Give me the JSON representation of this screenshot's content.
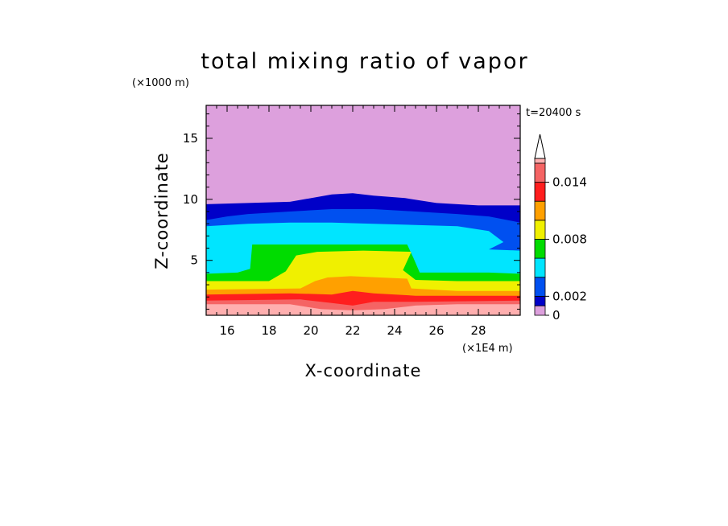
{
  "chart_data": {
    "type": "heatmap",
    "title": "total mixing ratio of vapor",
    "xlabel": "X-coordinate",
    "ylabel": "Z-coordinate",
    "x_unit": "(×1E4 m)",
    "y_unit": "(×1000 m)",
    "time_label": "t=20400 s",
    "xlim": [
      15,
      30
    ],
    "ylim": [
      0.5,
      17.7
    ],
    "x_ticks": [
      16,
      18,
      20,
      22,
      24,
      26,
      28
    ],
    "y_ticks": [
      5,
      10,
      15
    ],
    "colorbar": {
      "tick_values": [
        0,
        0.002,
        0.008,
        0.014
      ],
      "tick_labels": [
        "0",
        "0.002",
        "0.008",
        "0.014"
      ],
      "levels": [
        0,
        0.001,
        0.002,
        0.004,
        0.006,
        0.008,
        0.01,
        0.012,
        0.014,
        0.016,
        0.0165
      ],
      "colors": [
        "#dda0dd",
        "#0000c8",
        "#0050f0",
        "#00e5ff",
        "#00dc00",
        "#f0f000",
        "#ffa000",
        "#ff1e1e",
        "#f56464",
        "#ffafaf"
      ],
      "extend": "max"
    },
    "series": [
      {
        "level": 0.0005,
        "color": "#dda0dd",
        "top": [
          [
            15,
            17.7
          ],
          [
            30,
            17.7
          ]
        ]
      },
      {
        "level": 0.001,
        "color": "#0000c8",
        "top": [
          [
            15,
            9.6
          ],
          [
            19,
            9.8
          ],
          [
            21,
            10.4
          ],
          [
            22,
            10.5
          ],
          [
            23,
            10.3
          ],
          [
            24.5,
            10.1
          ],
          [
            26,
            9.7
          ],
          [
            28,
            9.5
          ],
          [
            30,
            9.5
          ]
        ]
      },
      {
        "level": 0.002,
        "color": "#0050f0",
        "top": [
          [
            15,
            8.3
          ],
          [
            16,
            8.6
          ],
          [
            17,
            8.8
          ],
          [
            19,
            9.0
          ],
          [
            21,
            9.2
          ],
          [
            23,
            9.2
          ],
          [
            25,
            9.0
          ],
          [
            27,
            8.8
          ],
          [
            28.5,
            8.6
          ],
          [
            30,
            8.1
          ]
        ]
      },
      {
        "level": 0.004,
        "color": "#00e5ff",
        "top": [
          [
            15,
            7.8
          ],
          [
            17,
            8.0
          ],
          [
            19,
            8.1
          ],
          [
            21,
            8.1
          ],
          [
            23,
            8.0
          ],
          [
            25,
            7.9
          ],
          [
            27,
            7.8
          ],
          [
            28.5,
            7.4
          ],
          [
            29.2,
            6.5
          ],
          [
            28.5,
            5.9
          ],
          [
            30,
            5.8
          ]
        ]
      },
      {
        "level": 0.006,
        "color": "#00dc00",
        "top": [
          [
            15,
            3.9
          ],
          [
            16.5,
            4.0
          ],
          [
            17.1,
            4.3
          ],
          [
            17.2,
            6.3
          ],
          [
            24.6,
            6.3
          ],
          [
            24.9,
            5.2
          ],
          [
            25.2,
            4.0
          ],
          [
            26.5,
            4.0
          ],
          [
            28.5,
            4.0
          ],
          [
            30,
            3.9
          ]
        ]
      },
      {
        "level": 0.008,
        "color": "#f0f000",
        "top": [
          [
            15,
            3.3
          ],
          [
            18,
            3.3
          ],
          [
            18.8,
            4.1
          ],
          [
            19.3,
            5.4
          ],
          [
            20.3,
            5.7
          ],
          [
            22.5,
            5.8
          ],
          [
            24.8,
            5.7
          ],
          [
            24.4,
            4.2
          ],
          [
            25.0,
            3.4
          ],
          [
            27,
            3.3
          ],
          [
            30,
            3.3
          ]
        ]
      },
      {
        "level": 0.01,
        "color": "#ffa000",
        "top": [
          [
            15,
            2.6
          ],
          [
            19.5,
            2.7
          ],
          [
            20.2,
            3.3
          ],
          [
            20.8,
            3.6
          ],
          [
            21.9,
            3.7
          ],
          [
            23.3,
            3.6
          ],
          [
            24.6,
            3.5
          ],
          [
            24.8,
            2.7
          ],
          [
            27,
            2.5
          ],
          [
            30,
            2.5
          ]
        ]
      },
      {
        "level": 0.012,
        "color": "#ff1e1e",
        "top": [
          [
            15,
            2.2
          ],
          [
            19,
            2.3
          ],
          [
            21,
            2.2
          ],
          [
            22,
            2.5
          ],
          [
            23,
            2.3
          ],
          [
            25,
            2.1
          ],
          [
            27,
            2.1
          ],
          [
            30,
            2.1
          ]
        ]
      },
      {
        "level": 0.014,
        "color": "#f56464",
        "top": [
          [
            15,
            1.7
          ],
          [
            19.5,
            1.8
          ],
          [
            21,
            1.5
          ],
          [
            22,
            1.3
          ],
          [
            23,
            1.6
          ],
          [
            25,
            1.6
          ],
          [
            30,
            1.7
          ]
        ]
      },
      {
        "level": 0.016,
        "color": "#ffafaf",
        "top": [
          [
            15,
            1.4
          ],
          [
            19,
            1.4
          ],
          [
            20.5,
            1.0
          ],
          [
            22,
            0.9
          ],
          [
            23.5,
            1.0
          ],
          [
            25,
            1.3
          ],
          [
            27,
            1.4
          ],
          [
            30,
            1.4
          ]
        ]
      }
    ]
  }
}
